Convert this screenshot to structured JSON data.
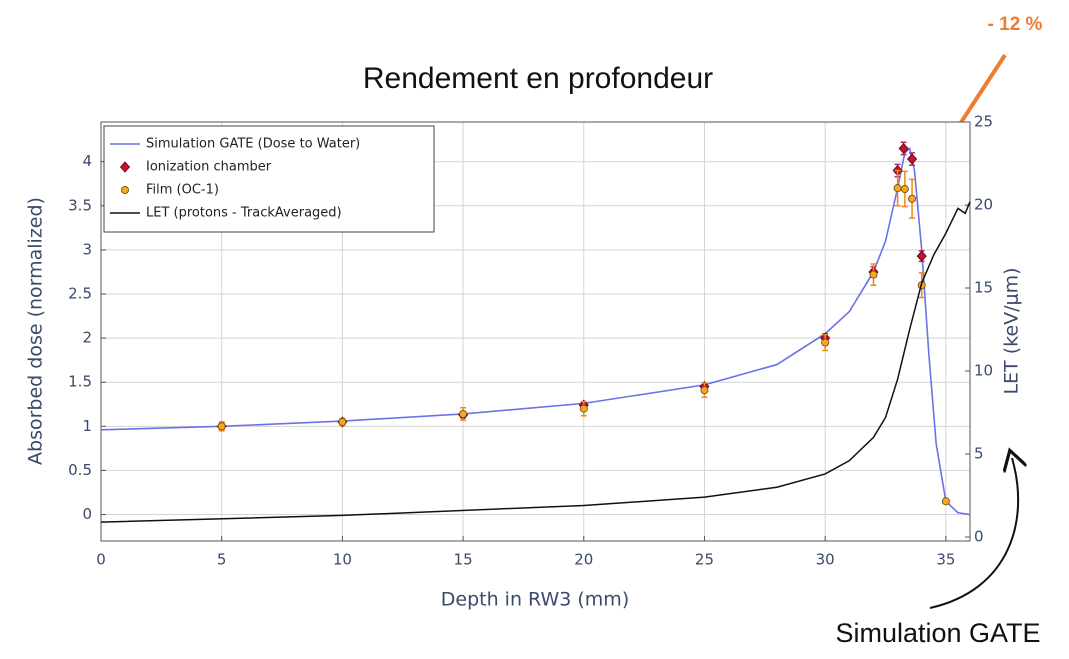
{
  "chart_data": {
    "type": "line",
    "title": "Rendement en profondeur",
    "x_label": "Depth in RW3 (mm)",
    "y_label": "Absorbed dose (normalized)",
    "y2_label": "LET (keV/μm)",
    "annotations": [
      "- 12 %",
      "Simulation GATE"
    ],
    "xlim": [
      0,
      36
    ],
    "xticks": [
      0,
      5,
      10,
      15,
      20,
      25,
      30,
      35
    ],
    "ylim": [
      -0.3,
      4.45
    ],
    "yticks": [
      0,
      0.5,
      1,
      1.5,
      2,
      2.5,
      3,
      3.5,
      4
    ],
    "y2lim": [
      -0.24,
      25
    ],
    "y2ticks": [
      0,
      5,
      10,
      15,
      20,
      25
    ],
    "grid": true,
    "legend": "upper left",
    "series": [
      {
        "name": "Simulation GATE (Dose to Water)",
        "type": "line",
        "color": "#6b72e8",
        "x": [
          0,
          5,
          10,
          15,
          20,
          25,
          28,
          30,
          31,
          32,
          32.5,
          33,
          33.3,
          33.5,
          33.7,
          34,
          34.3,
          34.6,
          35,
          35.5,
          36
        ],
        "values": [
          0.96,
          1.0,
          1.06,
          1.14,
          1.26,
          1.47,
          1.7,
          2.05,
          2.3,
          2.75,
          3.1,
          3.7,
          4.1,
          4.15,
          3.9,
          3.0,
          1.8,
          0.8,
          0.15,
          0.02,
          0.0
        ]
      },
      {
        "name": "Ionization chamber",
        "type": "scatter",
        "marker": "diamond",
        "color": "#c8102e",
        "x": [
          5,
          10,
          15,
          20,
          25,
          30,
          32,
          33,
          33.25,
          33.6,
          34
        ],
        "values": [
          1.0,
          1.05,
          1.13,
          1.24,
          1.45,
          2.0,
          2.75,
          3.9,
          4.15,
          4.03,
          2.93
        ],
        "errors": [
          0.03,
          0.03,
          0.03,
          0.03,
          0.04,
          0.05,
          0.06,
          0.07,
          0.07,
          0.07,
          0.06
        ]
      },
      {
        "name": "Film (OC-1)",
        "type": "scatter",
        "marker": "circle",
        "color": "#f5a623",
        "x": [
          5,
          10,
          15,
          20,
          25,
          30,
          32,
          33,
          33.3,
          33.6,
          34,
          35
        ],
        "values": [
          1.0,
          1.05,
          1.14,
          1.2,
          1.41,
          1.95,
          2.72,
          3.7,
          3.69,
          3.58,
          2.6,
          0.15
        ],
        "errors": [
          0.05,
          0.04,
          0.07,
          0.08,
          0.08,
          0.09,
          0.12,
          0.2,
          0.2,
          0.22,
          0.14,
          0.02
        ]
      },
      {
        "name": "LET (protons - TrackAveraged)",
        "type": "line",
        "axis": "y2",
        "color": "#111111",
        "x": [
          0,
          10,
          20,
          25,
          28,
          30,
          31,
          32,
          32.5,
          33,
          33.5,
          34,
          34.5,
          35,
          35.5,
          35.8,
          36
        ],
        "values": [
          0.9,
          1.3,
          1.9,
          2.4,
          3.0,
          3.8,
          4.6,
          6.0,
          7.2,
          9.5,
          12.5,
          15.3,
          17.0,
          18.3,
          19.8,
          19.5,
          20.2
        ]
      }
    ]
  }
}
